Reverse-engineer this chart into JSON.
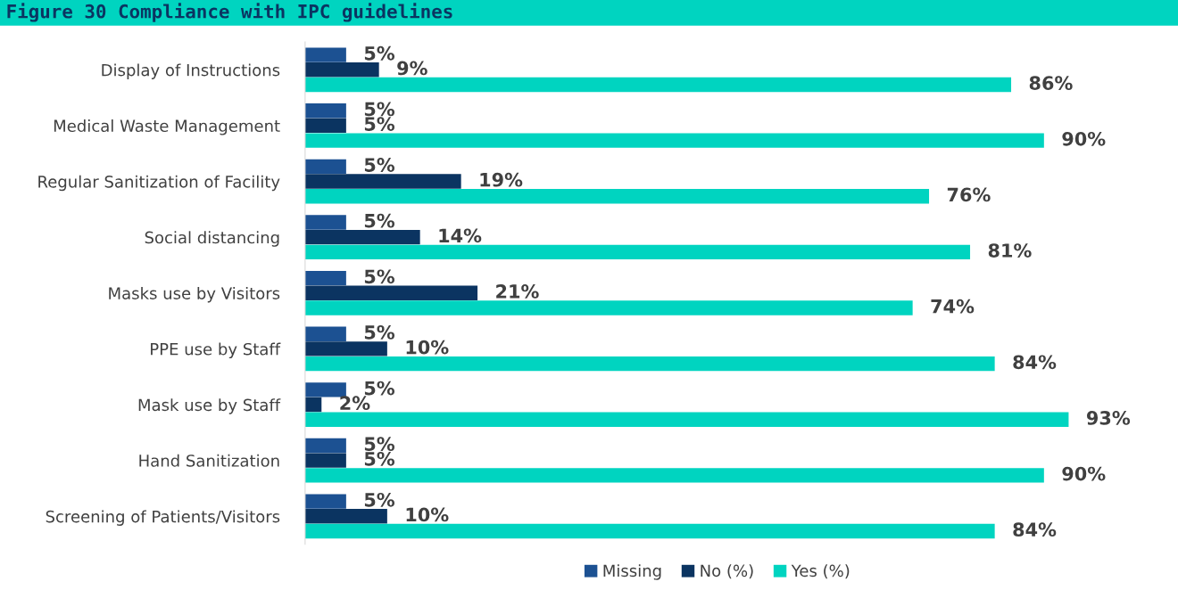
{
  "chart_data": {
    "type": "bar",
    "orientation": "horizontal",
    "title": "Figure 30 Compliance with IPC guidelines",
    "categories": [
      "Display of Instructions",
      "Medical Waste Management",
      "Regular Sanitization of Facility",
      "Social distancing",
      "Masks use by Visitors",
      "PPE use by Staff",
      "Mask use by Staff",
      "Hand Sanitization",
      "Screening of Patients/Visitors"
    ],
    "series": [
      {
        "name": "Missing",
        "color": "#1c5192",
        "values": [
          5,
          5,
          5,
          5,
          5,
          5,
          5,
          5,
          5
        ],
        "value_labels": [
          "5%",
          "5%",
          "5%",
          "5%",
          "5%",
          "5%",
          "5%",
          "5%",
          "5%"
        ]
      },
      {
        "name": "No (%)",
        "color": "#0b3461",
        "values": [
          9,
          5,
          19,
          14,
          21,
          10,
          2,
          5,
          10
        ],
        "value_labels": [
          "9%",
          "5%",
          "19%",
          "14%",
          "21%",
          "10%",
          "2%",
          "5%",
          "10%"
        ]
      },
      {
        "name": "Yes (%)",
        "color": "#00d4c0",
        "values": [
          86,
          90,
          76,
          81,
          74,
          84,
          93,
          90,
          84
        ],
        "value_labels": [
          "86%",
          "90%",
          "76%",
          "81%",
          "74%",
          "84%",
          "93%",
          "90%",
          "84%"
        ]
      }
    ],
    "legend": "bottom",
    "grid": false
  }
}
